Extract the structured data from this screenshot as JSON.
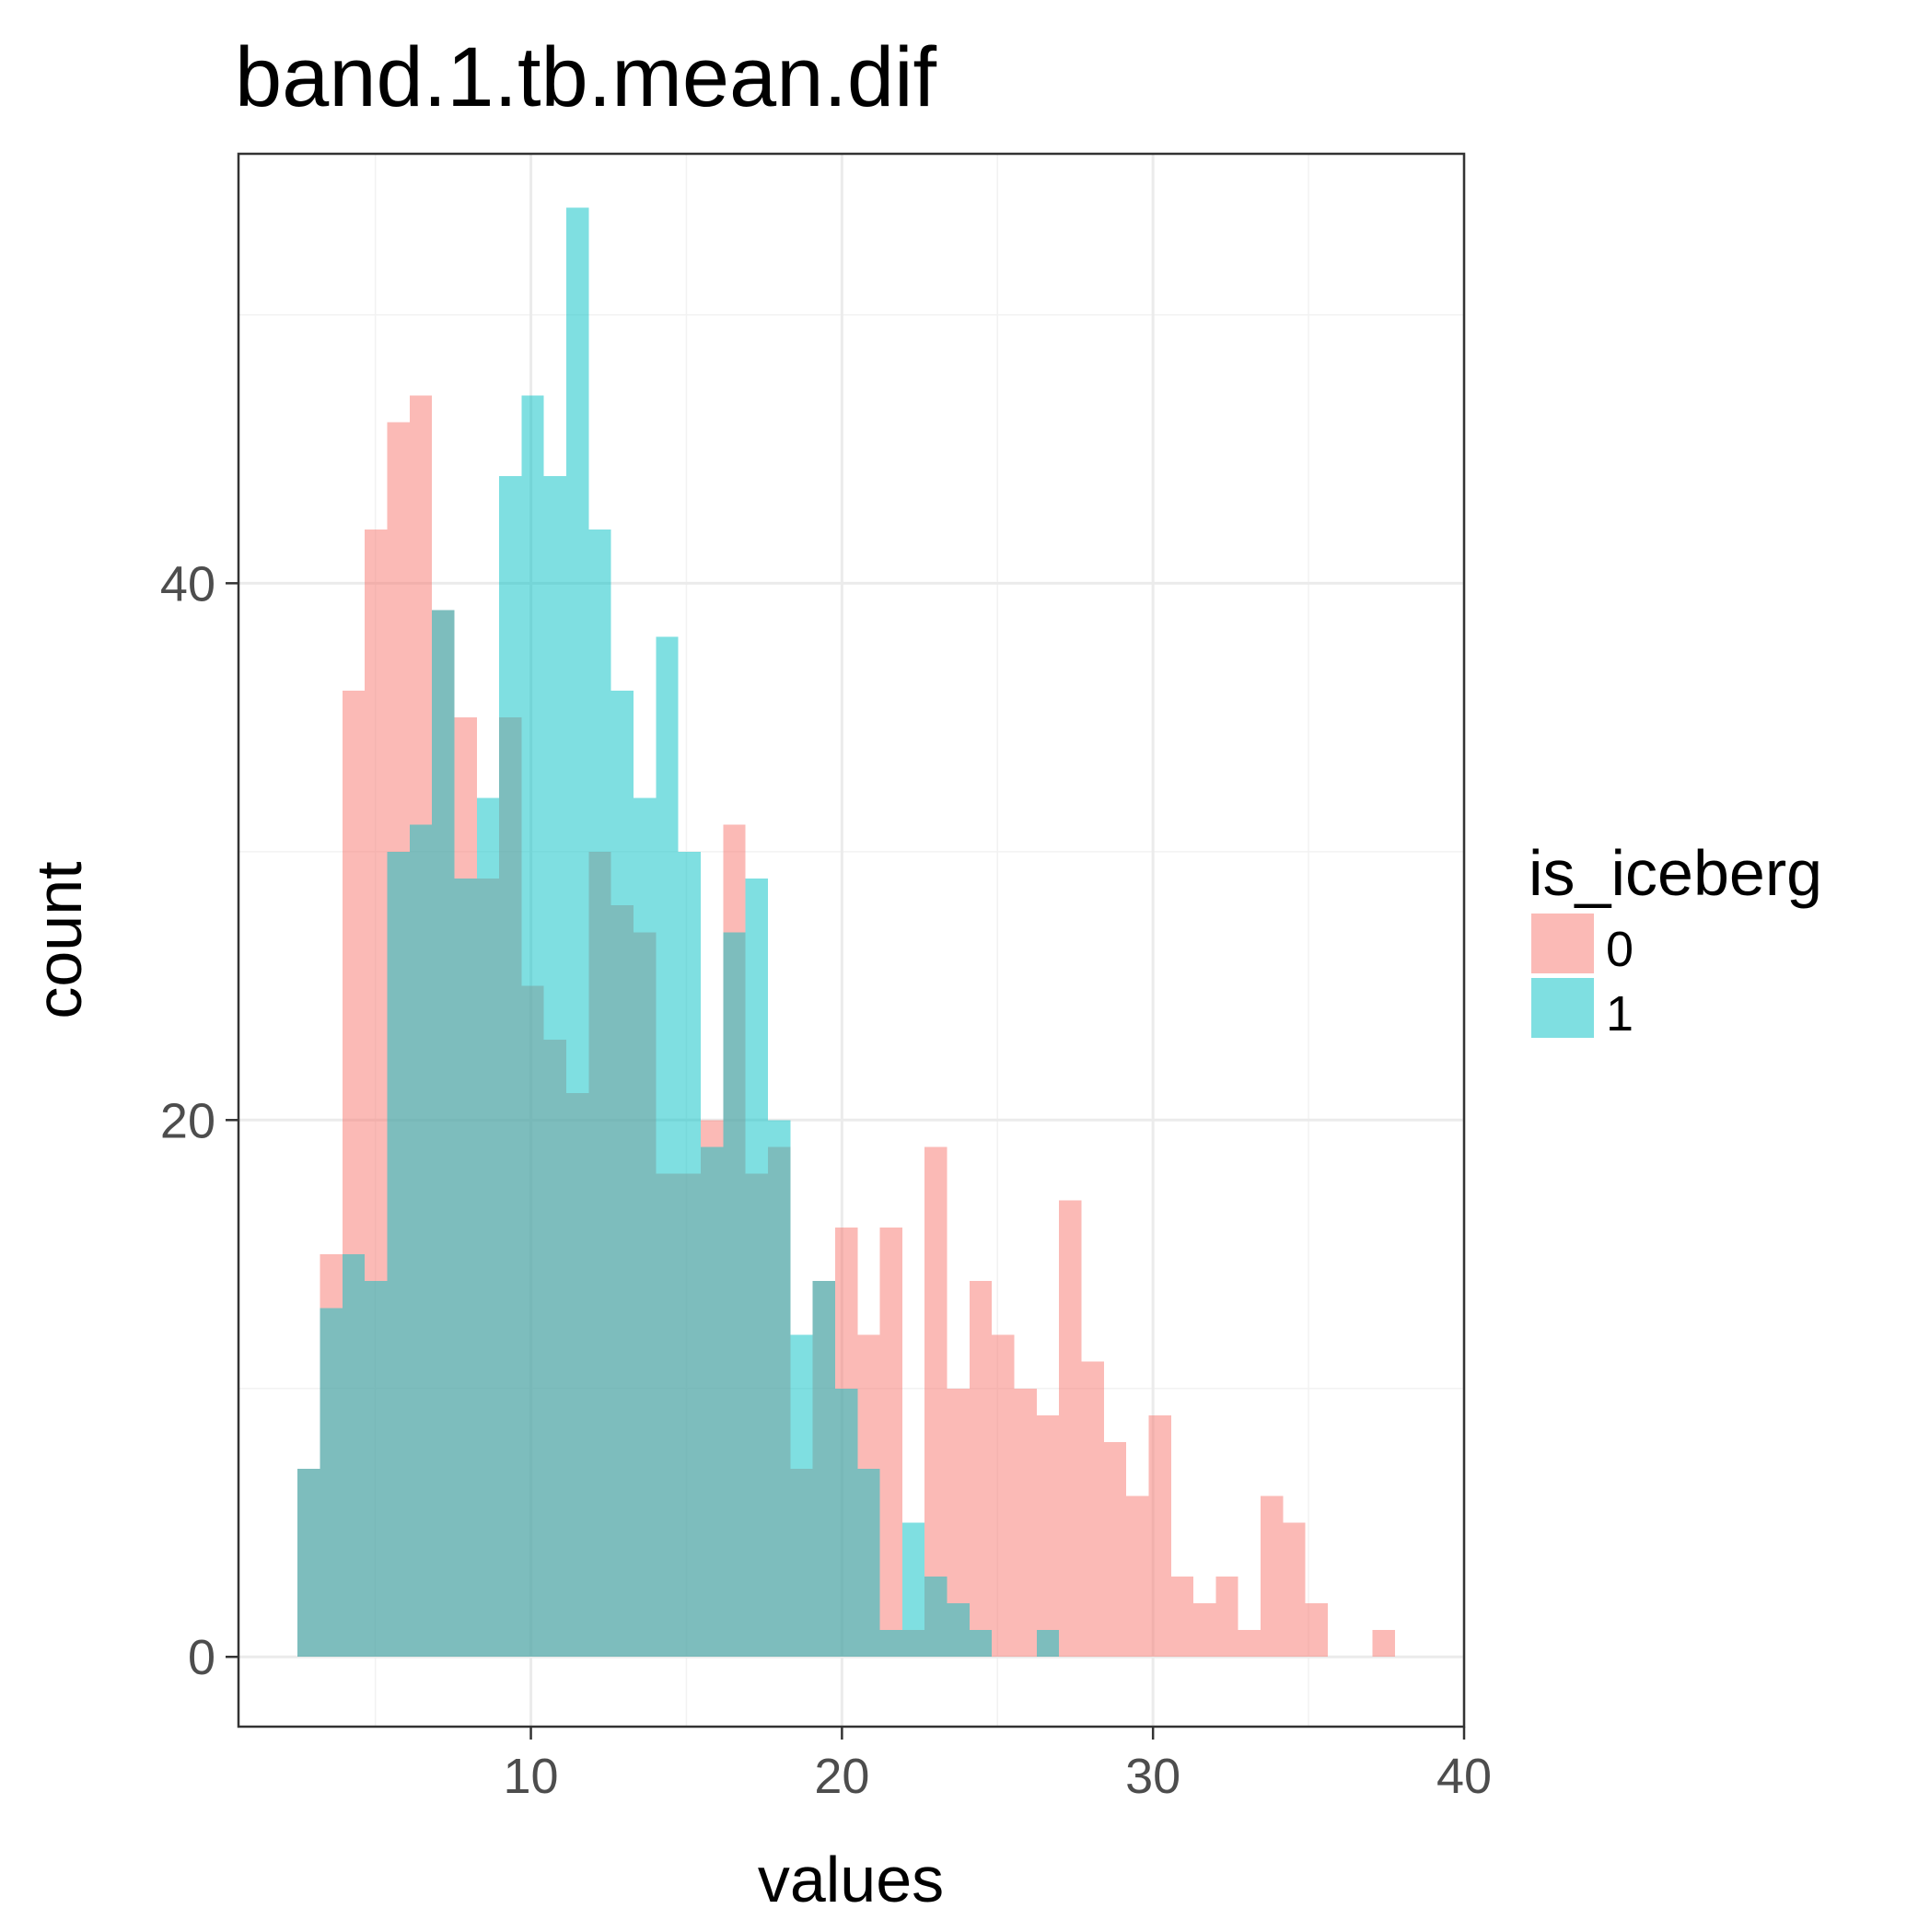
{
  "chart_data": {
    "type": "histogram",
    "title": "band.1.tb.mean.dif",
    "xlabel": "values",
    "ylabel": "count",
    "xlim": [
      0.6,
      40
    ],
    "ylim": [
      -2.6,
      56
    ],
    "x_ticks": [
      10,
      20,
      30,
      40
    ],
    "y_ticks": [
      0,
      20,
      40
    ],
    "grid": true,
    "bin_edges": [
      2.5,
      3.22,
      3.94,
      4.66,
      5.38,
      6.1,
      6.82,
      7.54,
      8.26,
      8.98,
      9.7,
      10.42,
      11.14,
      11.86,
      12.58,
      13.3,
      14.02,
      14.74,
      15.46,
      16.18,
      16.9,
      17.62,
      18.34,
      19.06,
      19.78,
      20.5,
      21.22,
      21.94,
      22.66,
      23.38,
      24.1,
      24.82,
      25.54,
      26.26,
      26.98,
      27.7,
      28.42,
      29.14,
      29.86,
      30.58,
      31.3,
      32.02,
      32.74,
      33.46,
      34.18,
      34.9,
      35.62,
      36.34,
      37.06,
      37.78,
      38.5
    ],
    "legend": {
      "title": "is_iceberg",
      "position": "right",
      "entries": [
        {
          "label": "0",
          "color": "#F8766D"
        },
        {
          "label": "1",
          "color": "#00BFC4"
        }
      ]
    },
    "series": [
      {
        "name": "0",
        "color": "#F8766D",
        "opacity": 0.5,
        "counts": [
          7,
          15,
          36,
          42,
          46,
          47,
          39,
          35,
          29,
          35,
          25,
          23,
          21,
          30,
          28,
          27,
          18,
          18,
          20,
          31,
          18,
          19,
          7,
          14,
          16,
          12,
          16,
          1,
          19,
          10,
          14,
          12,
          10,
          9,
          17,
          11,
          8,
          6,
          9,
          3,
          2,
          3,
          1,
          6,
          5,
          2,
          0,
          0,
          1,
          0
        ]
      },
      {
        "name": "1",
        "color": "#00BFC4",
        "opacity": 0.5,
        "counts": [
          7,
          13,
          15,
          14,
          30,
          31,
          39,
          29,
          32,
          44,
          47,
          44,
          54,
          42,
          36,
          32,
          38,
          30,
          19,
          27,
          29,
          20,
          12,
          14,
          10,
          7,
          1,
          5,
          3,
          2,
          1,
          0,
          0,
          1,
          0,
          0,
          0,
          0,
          0,
          0,
          0,
          0,
          0,
          0,
          0,
          0,
          0,
          0,
          0,
          0
        ]
      }
    ]
  }
}
